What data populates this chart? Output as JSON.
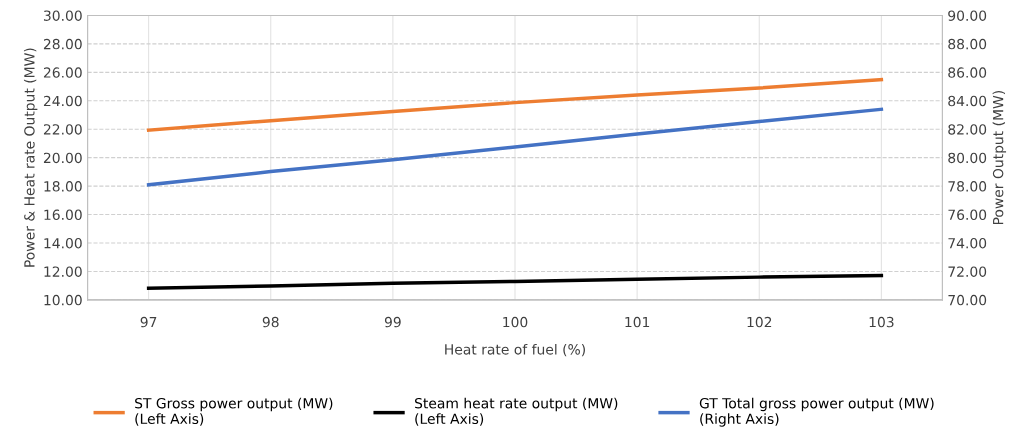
{
  "chart_data": {
    "type": "line",
    "xlabel": "Heat rate of fuel (%)",
    "ylabel": "Power & Heat rate Output (MW)",
    "y2label": "Power Output (MW)",
    "x": [
      97,
      98,
      99,
      100,
      101,
      102,
      103
    ],
    "series": [
      {
        "name": "ST Gross power output (MW)\n(Left Axis)",
        "color": "#ed7d31",
        "values": [
          21.93,
          22.6,
          23.24,
          23.87,
          24.4,
          24.9,
          25.48
        ]
      },
      {
        "name": "Steam heat rate output (MW)\n(Left Axis)",
        "color": "#000000",
        "values": [
          10.82,
          10.98,
          11.17,
          11.3,
          11.45,
          11.6,
          11.72
        ]
      },
      {
        "name": "GT Total gross power output (MW)\n(Right Axis)",
        "color": "#4472c4",
        "axis": "y2",
        "values": [
          78.09,
          79.02,
          79.86,
          80.75,
          81.66,
          82.54,
          83.4
        ]
      }
    ],
    "xlim": [
      96.5,
      103.5
    ],
    "xticks": [
      97,
      98,
      99,
      100,
      101,
      102,
      103
    ],
    "ylim": [
      10,
      30
    ],
    "yticks": [
      {
        "value": 10,
        "label": "10.00"
      },
      {
        "value": 12,
        "label": "12.00"
      },
      {
        "value": 14,
        "label": "14.00"
      },
      {
        "value": 16,
        "label": "16.00"
      },
      {
        "value": 18,
        "label": "18.00"
      },
      {
        "value": 20,
        "label": "20.00"
      },
      {
        "value": 22,
        "label": "22.00"
      },
      {
        "value": 24,
        "label": "24.00"
      },
      {
        "value": 26,
        "label": "26.00"
      },
      {
        "value": 28,
        "label": "28.00"
      },
      {
        "value": 30,
        "label": "30.00"
      }
    ],
    "y2lim": [
      70,
      90
    ],
    "y2ticks": [
      {
        "value": 70,
        "label": "70.00"
      },
      {
        "value": 72,
        "label": "72.00"
      },
      {
        "value": 74,
        "label": "74.00"
      },
      {
        "value": 76,
        "label": "76.00"
      },
      {
        "value": 78,
        "label": "78.00"
      },
      {
        "value": 80,
        "label": "80.00"
      },
      {
        "value": 82,
        "label": "82.00"
      },
      {
        "value": 84,
        "label": "84.00"
      },
      {
        "value": 86,
        "label": "86.00"
      },
      {
        "value": 88,
        "label": "88.00"
      },
      {
        "value": 90,
        "label": "90.00"
      }
    ],
    "grid": true,
    "legend": "bottom",
    "marker": "none",
    "line_style": "solid"
  }
}
